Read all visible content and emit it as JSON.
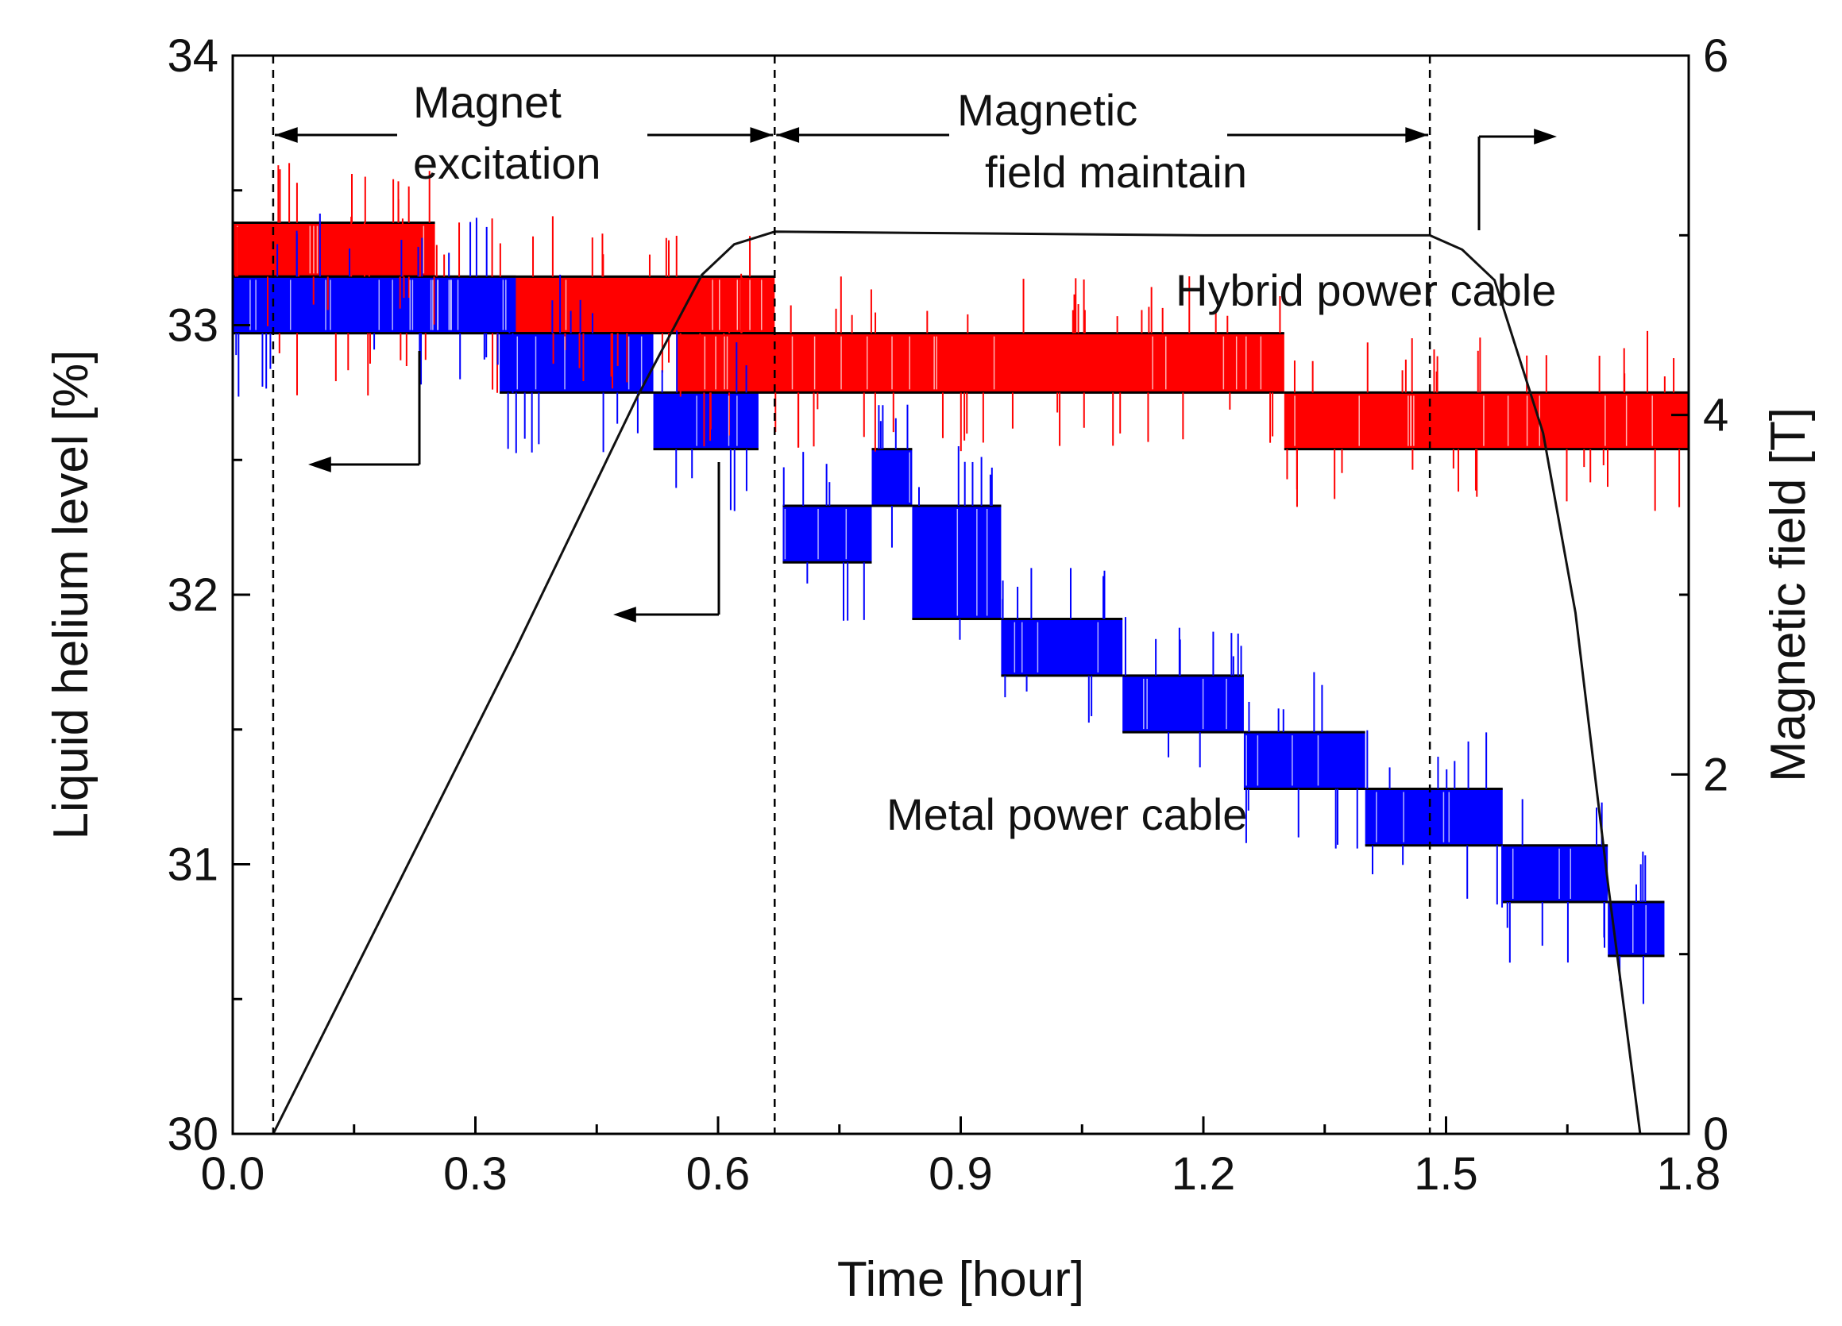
{
  "chart_data": {
    "type": "line",
    "title": "",
    "xlabel": "Time [hour]",
    "ylabel_left": "Liquid helium level [%]",
    "ylabel_right": "Magnetic field [T]",
    "xlim": [
      0.0,
      1.8
    ],
    "ylim_left": [
      30,
      34
    ],
    "ylim_right": [
      0,
      6
    ],
    "x_ticks": [
      "0.0",
      "0.3",
      "0.6",
      "0.9",
      "1.2",
      "1.5",
      "1.8"
    ],
    "x_tick_values": [
      0.0,
      0.3,
      0.6,
      0.9,
      1.2,
      1.5,
      1.8
    ],
    "y_left_ticks": [
      "30",
      "31",
      "32",
      "33",
      "34"
    ],
    "y_left_tick_values": [
      30,
      31,
      32,
      33,
      34
    ],
    "y_right_ticks": [
      "0",
      "2",
      "4",
      "6"
    ],
    "y_right_tick_values": [
      0,
      2,
      4,
      6
    ],
    "grid": false,
    "phase_boundaries_hour": [
      0.05,
      0.67,
      1.48
    ],
    "phases": [
      {
        "label_line1": "Magnet",
        "label_line2": "excitation"
      },
      {
        "label_line1": "Magnetic",
        "label_line2": "field maintain"
      }
    ],
    "series": [
      {
        "name": "Hybrid power cable",
        "color": "#ff0000",
        "axis": "left",
        "levels": [
          {
            "x_start": 0.0,
            "x_end": 0.25,
            "high": 33.38,
            "low": 33.18
          },
          {
            "x_start": 0.0,
            "x_end": 0.67,
            "high": 33.18,
            "low": 32.97
          },
          {
            "x_start": 0.55,
            "x_end": 1.3,
            "high": 32.97,
            "low": 32.75
          },
          {
            "x_start": 1.3,
            "x_end": 1.8,
            "high": 32.75,
            "low": 32.54
          }
        ]
      },
      {
        "name": "Metal power cable",
        "color": "#0000ff",
        "axis": "left",
        "levels": [
          {
            "x_start": 0.0,
            "x_end": 0.35,
            "high": 33.18,
            "low": 32.97
          },
          {
            "x_start": 0.33,
            "x_end": 0.52,
            "high": 32.97,
            "low": 32.75
          },
          {
            "x_start": 0.52,
            "x_end": 0.65,
            "high": 32.75,
            "low": 32.54
          },
          {
            "x_start": 0.68,
            "x_end": 0.79,
            "high": 32.33,
            "low": 32.12
          },
          {
            "x_start": 0.79,
            "x_end": 0.84,
            "high": 32.54,
            "low": 32.33
          },
          {
            "x_start": 0.84,
            "x_end": 0.95,
            "high": 32.33,
            "low": 31.91
          },
          {
            "x_start": 0.95,
            "x_end": 1.1,
            "high": 31.91,
            "low": 31.7
          },
          {
            "x_start": 1.1,
            "x_end": 1.25,
            "high": 31.7,
            "low": 31.49
          },
          {
            "x_start": 1.25,
            "x_end": 1.4,
            "high": 31.49,
            "low": 31.28
          },
          {
            "x_start": 1.4,
            "x_end": 1.57,
            "high": 31.28,
            "low": 31.07
          },
          {
            "x_start": 1.57,
            "x_end": 1.7,
            "high": 31.07,
            "low": 30.86
          },
          {
            "x_start": 1.7,
            "x_end": 1.77,
            "high": 30.86,
            "low": 30.66
          }
        ]
      },
      {
        "name": "Magnetic field",
        "color": "#111111",
        "axis": "right",
        "x": [
          0.05,
          0.35,
          0.5,
          0.58,
          0.62,
          0.67,
          1.2,
          1.48,
          1.52,
          1.56,
          1.62,
          1.66,
          1.7,
          1.74
        ],
        "y": [
          0.0,
          2.7,
          4.1,
          4.78,
          4.95,
          5.02,
          5.0,
          5.0,
          4.92,
          4.75,
          3.9,
          2.9,
          1.4,
          0.0
        ]
      }
    ]
  }
}
